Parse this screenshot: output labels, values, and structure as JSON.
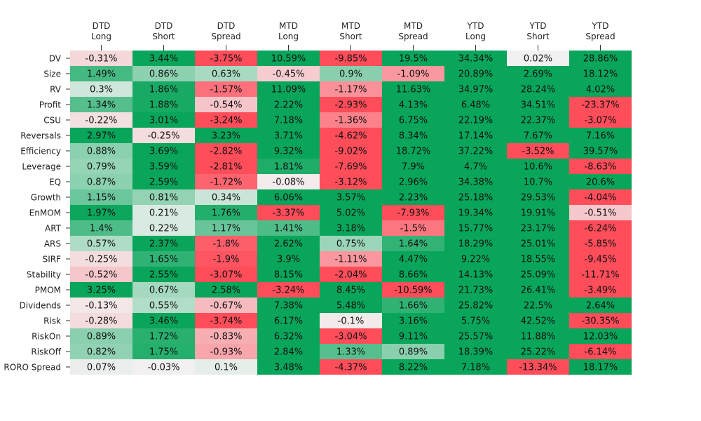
{
  "chart_data": {
    "type": "heatmap",
    "title": "",
    "columns": [
      [
        "DTD",
        "Long"
      ],
      [
        "DTD",
        "Short"
      ],
      [
        "DTD",
        "Spread"
      ],
      [
        "MTD",
        "Long"
      ],
      [
        "MTD",
        "Short"
      ],
      [
        "MTD",
        "Spread"
      ],
      [
        "YTD",
        "Long"
      ],
      [
        "YTD",
        "Short"
      ],
      [
        "YTD",
        "Spread"
      ]
    ],
    "rows": [
      "DV",
      "Size",
      "RV",
      "Profit",
      "CSU",
      "Reversals",
      "Efficiency",
      "Leverage",
      "EQ",
      "Growth",
      "EnMOM",
      "ART",
      "ARS",
      "SIRF",
      "Stability",
      "PMOM",
      "Dividends",
      "Risk",
      "RiskOn",
      "RiskOff",
      "RORO Spread"
    ],
    "values": [
      [
        -0.31,
        3.44,
        -3.75,
        10.59,
        -9.85,
        19.5,
        34.34,
        0.02,
        28.86
      ],
      [
        1.49,
        0.86,
        0.63,
        -0.45,
        0.9,
        -1.09,
        20.89,
        2.69,
        18.12
      ],
      [
        0.3,
        1.86,
        -1.57,
        11.09,
        -1.17,
        11.63,
        34.97,
        28.24,
        4.02
      ],
      [
        1.34,
        1.88,
        -0.54,
        2.22,
        -2.93,
        4.13,
        6.48,
        34.51,
        -23.37
      ],
      [
        -0.22,
        3.01,
        -3.24,
        7.18,
        -1.36,
        6.75,
        22.19,
        22.37,
        -3.07
      ],
      [
        2.97,
        -0.25,
        3.23,
        3.71,
        -4.62,
        8.34,
        17.14,
        7.67,
        7.16
      ],
      [
        0.88,
        3.69,
        -2.82,
        9.32,
        -9.02,
        18.72,
        37.22,
        -3.52,
        39.57
      ],
      [
        0.79,
        3.59,
        -2.81,
        1.81,
        -7.69,
        7.9,
        4.7,
        10.6,
        -8.63
      ],
      [
        0.87,
        2.59,
        -1.72,
        -0.08,
        -3.12,
        2.96,
        34.38,
        10.7,
        20.6
      ],
      [
        1.15,
        0.81,
        0.34,
        6.06,
        3.57,
        2.23,
        25.18,
        29.53,
        -4.04
      ],
      [
        1.97,
        0.21,
        1.76,
        -3.37,
        5.02,
        -7.93,
        19.34,
        19.91,
        -0.51
      ],
      [
        1.4,
        0.22,
        1.17,
        1.41,
        3.18,
        -1.5,
        15.77,
        23.17,
        -6.24
      ],
      [
        0.57,
        2.37,
        -1.8,
        2.62,
        0.75,
        1.64,
        18.29,
        25.01,
        -5.85
      ],
      [
        -0.25,
        1.65,
        -1.9,
        3.9,
        -1.11,
        4.47,
        9.22,
        18.55,
        -9.45
      ],
      [
        -0.52,
        2.55,
        -3.07,
        8.15,
        -2.04,
        8.66,
        14.13,
        25.09,
        -11.71
      ],
      [
        3.25,
        0.67,
        2.58,
        -3.24,
        8.45,
        -10.59,
        21.73,
        26.41,
        -3.49
      ],
      [
        -0.13,
        0.55,
        -0.67,
        7.38,
        5.48,
        1.66,
        25.82,
        22.5,
        2.64
      ],
      [
        -0.28,
        3.46,
        -3.74,
        6.17,
        -0.1,
        3.16,
        5.75,
        42.52,
        -30.35
      ],
      [
        0.89,
        1.72,
        -0.83,
        6.32,
        -3.04,
        9.11,
        25.57,
        11.88,
        12.03
      ],
      [
        0.82,
        1.75,
        -0.93,
        2.84,
        1.33,
        0.89,
        18.39,
        25.22,
        -6.14
      ],
      [
        0.07,
        -0.03,
        0.1,
        3.48,
        -4.37,
        8.22,
        7.18,
        -13.34,
        18.17
      ]
    ],
    "value_suffix": "%",
    "color_scale": {
      "negative": "#ff4d5a",
      "neutral": "#f2f2f2",
      "positive": "#08a55a",
      "saturation": 2.0
    },
    "legend": "none"
  }
}
